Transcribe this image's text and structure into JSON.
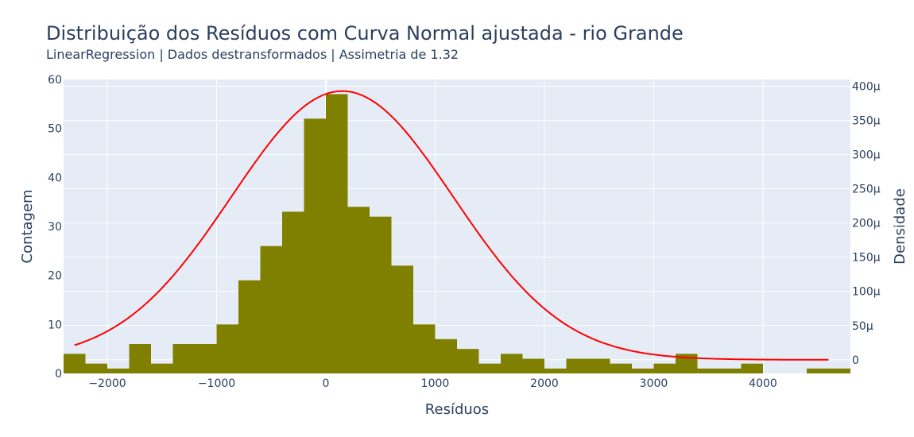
{
  "chart_data": {
    "type": "bar",
    "title": "Distribuição dos Resíduos com Curva Normal ajustada - rio Grande",
    "subtitle": "LinearRegression | Dados destransformados | Assimetria de 1.32",
    "xlabel": "Resíduos",
    "ylabel": "Contagem",
    "y2label": "Densidade",
    "xlim": [
      -2400,
      4800
    ],
    "ylim": [
      0,
      60
    ],
    "y2lim": [
      -20,
      410
    ],
    "xticks": [
      -2000,
      -1000,
      0,
      1000,
      2000,
      3000,
      4000
    ],
    "xtick_labels": [
      "−2000",
      "−1000",
      "0",
      "1000",
      "2000",
      "3000",
      "4000"
    ],
    "yticks": [
      0,
      10,
      20,
      30,
      40,
      50,
      60
    ],
    "y2ticks": [
      0,
      50,
      100,
      150,
      200,
      250,
      300,
      350,
      400
    ],
    "y2tick_labels": [
      "0",
      "50μ",
      "100μ",
      "150μ",
      "200μ",
      "250μ",
      "300μ",
      "350μ",
      "400μ"
    ],
    "grid": true,
    "bar_color": "#808000",
    "curve_color": "#ff0000",
    "histogram": {
      "bin_edges": [
        -2400,
        -2200,
        -2000,
        -1800,
        -1600,
        -1400,
        -1200,
        -1000,
        -800,
        -600,
        -400,
        -200,
        0,
        200,
        400,
        600,
        800,
        1000,
        1200,
        1400,
        1600,
        1800,
        2000,
        2200,
        2400,
        2600,
        2800,
        3000,
        3200,
        3400,
        3600,
        3800,
        4000,
        4200,
        4400,
        4600,
        4800
      ],
      "counts": [
        4,
        2,
        1,
        6,
        2,
        6,
        6,
        10,
        19,
        26,
        33,
        52,
        57,
        34,
        32,
        22,
        10,
        7,
        5,
        2,
        4,
        3,
        1,
        3,
        3,
        2,
        1,
        2,
        4,
        1,
        1,
        2,
        0,
        0,
        1,
        1
      ]
    },
    "normal_curve": {
      "name": "Curva Normal",
      "mean": 150,
      "std": 1015,
      "x_range": [
        -2300,
        4600
      ],
      "density_units": "μ"
    }
  }
}
